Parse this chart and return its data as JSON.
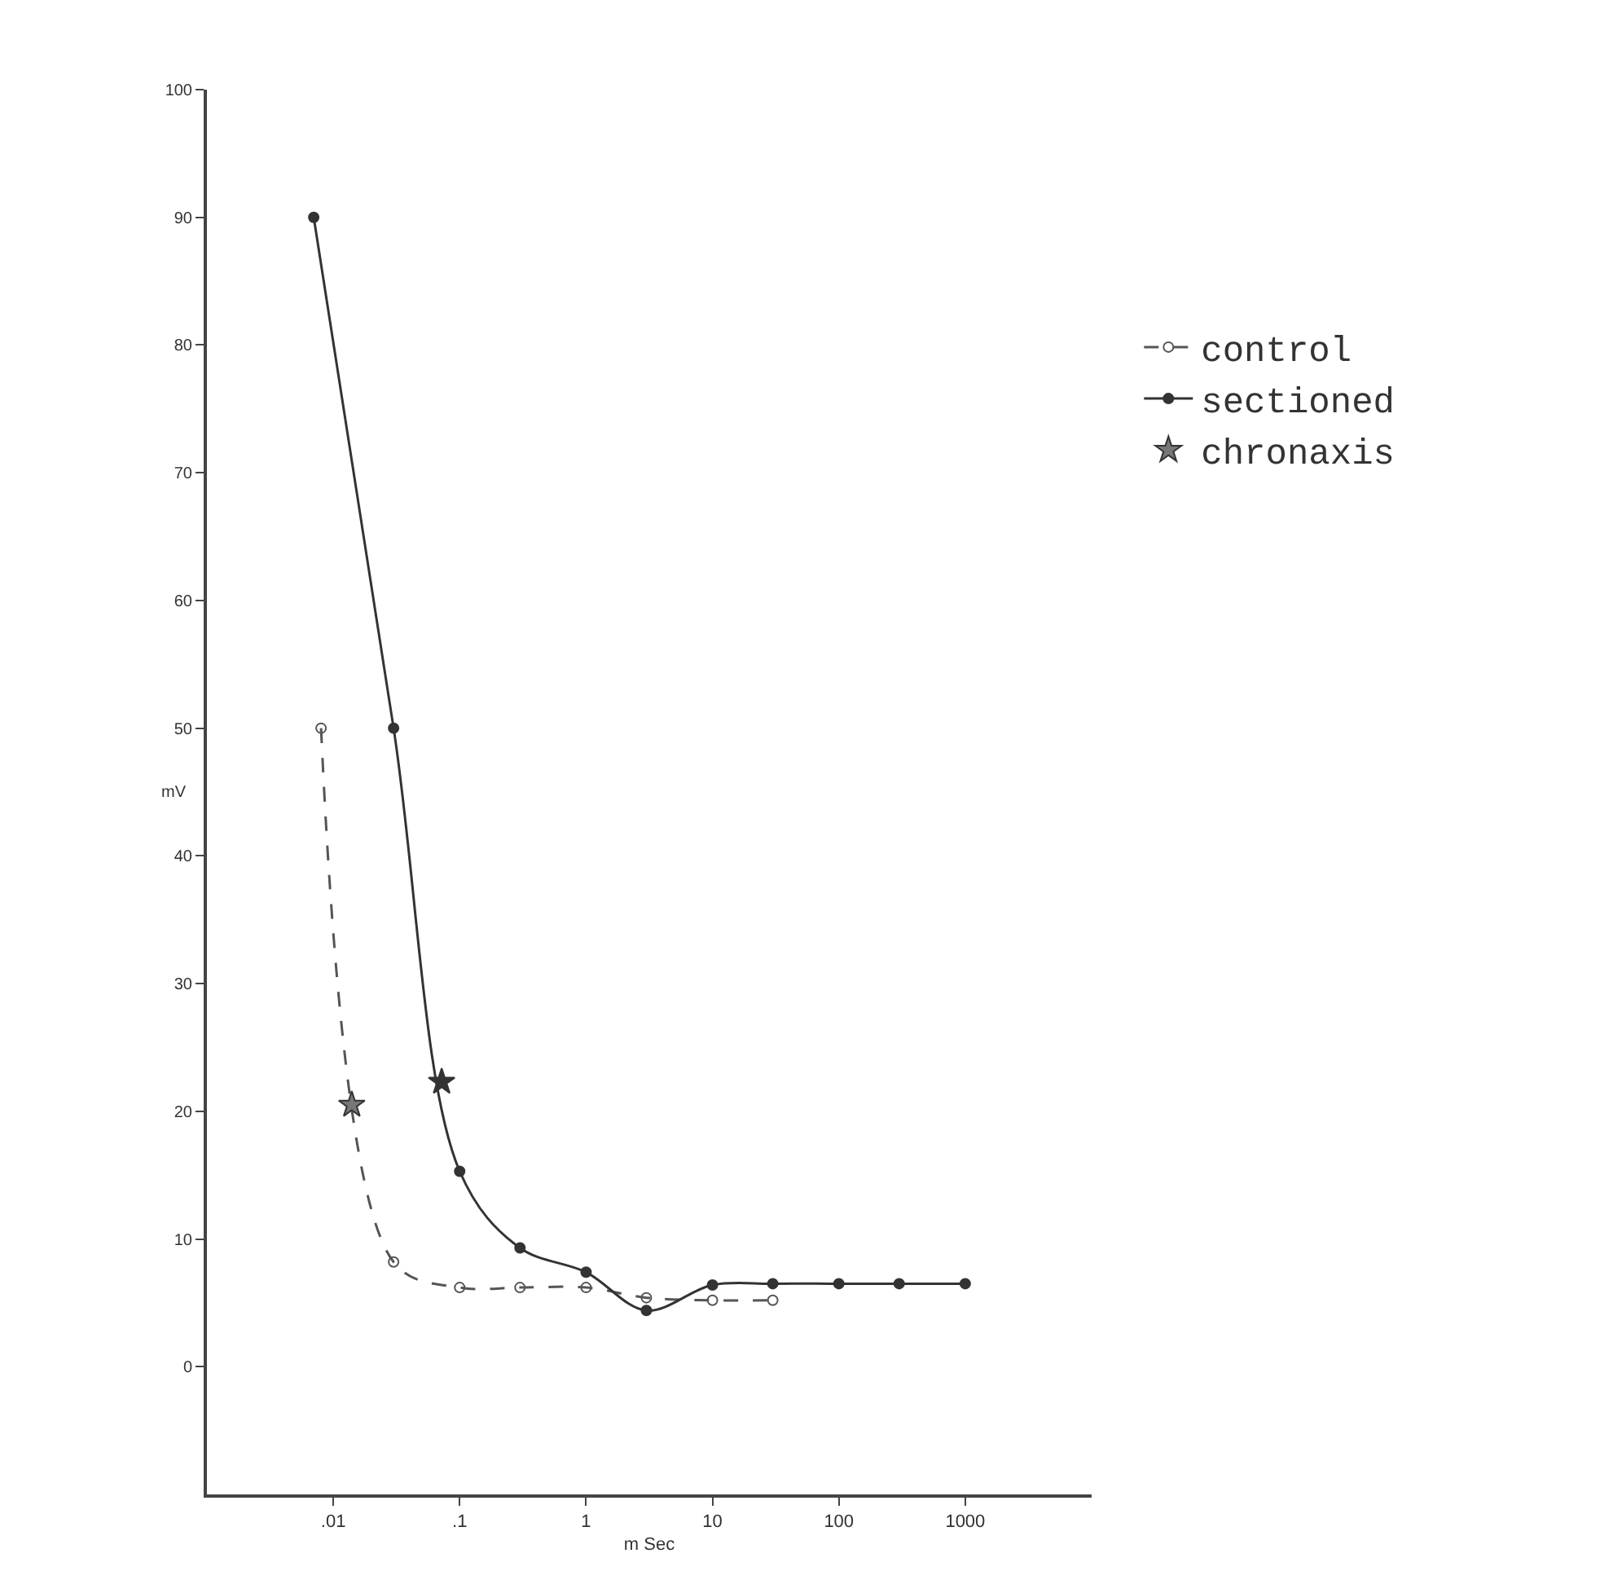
{
  "chart_data": {
    "type": "line",
    "xlabel": "m Sec",
    "ylabel": "mV",
    "log": "x",
    "grid": false,
    "legend": "right",
    "xlim": [
      0.001,
      10000
    ],
    "xticks": [
      {
        "value": 0.01,
        "label": ".01"
      },
      {
        "value": 0.1,
        "label": ".1"
      },
      1,
      10,
      100,
      1000
    ],
    "ylim": [
      -10,
      100
    ],
    "yticks": [
      0,
      10,
      20,
      30,
      40,
      50,
      60,
      70,
      80,
      90,
      100
    ],
    "series": [
      {
        "name": "control",
        "color": "#555555",
        "line_style": "dashed",
        "marker": "circle",
        "x": [
          0.008,
          0.03,
          0.1,
          0.3,
          1,
          3,
          10,
          30
        ],
        "values": [
          50,
          8.2,
          6.2,
          6.2,
          6.2,
          5.4,
          5.2,
          5.2
        ]
      },
      {
        "name": "sectioned",
        "color": "#333333",
        "line_style": "solid",
        "marker": "circle",
        "x": [
          0.007,
          0.03,
          0.1,
          0.3,
          1,
          3,
          10,
          30,
          100,
          300,
          1000
        ],
        "values": [
          90,
          50,
          15.3,
          9.3,
          7.4,
          4.4,
          6.4,
          6.5,
          6.5,
          6.5,
          6.5
        ]
      },
      {
        "name": "chronaxis",
        "type": "scatter",
        "marker": "star",
        "colors": [
          "#777777",
          "#333333"
        ],
        "color": "#333333",
        "x": [
          0.014,
          0.072
        ],
        "values": [
          20.5,
          22.3
        ]
      }
    ]
  }
}
